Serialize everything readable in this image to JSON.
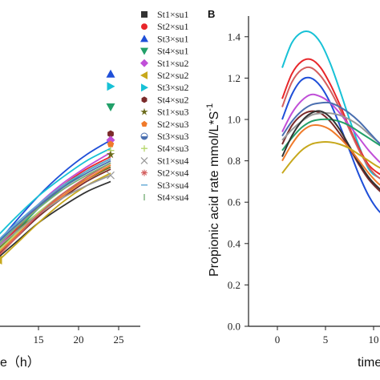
{
  "chart_data": [
    {
      "type": "line",
      "panel_label": "",
      "xlabel": "time (h)",
      "xlabel_visible": "e（h）",
      "ylabel": "",
      "x_ticks": [
        "15",
        "20",
        "25"
      ],
      "xlim": [
        9,
        27
      ],
      "ylim": [
        0,
        1.5
      ],
      "legend": {
        "placement": "right",
        "entries": [
          {
            "label": "St1×su1",
            "color": "#333333",
            "marker": "square"
          },
          {
            "label": "St2×su1",
            "color": "#e8262a",
            "marker": "circle"
          },
          {
            "label": "St3×su1",
            "color": "#1f4fd8",
            "marker": "triangle-up"
          },
          {
            "label": "St4×su1",
            "color": "#22a069",
            "marker": "triangle-down"
          },
          {
            "label": "St1×su2",
            "color": "#c04fd8",
            "marker": "diamond"
          },
          {
            "label": "St2×su2",
            "color": "#c7a81c",
            "marker": "triangle-left"
          },
          {
            "label": "St3×su2",
            "color": "#17c1d6",
            "marker": "triangle-right"
          },
          {
            "label": "St4×su2",
            "color": "#7a2a2a",
            "marker": "hexagon"
          },
          {
            "label": "St1×su3",
            "color": "#6a6a1a",
            "marker": "star"
          },
          {
            "label": "St2×su3",
            "color": "#f07a2a",
            "marker": "pentagon"
          },
          {
            "label": "St3×su3",
            "color": "#4a6fb0",
            "marker": "half-circle"
          },
          {
            "label": "St4×su3",
            "color": "#b5d66a",
            "marker": "plus"
          },
          {
            "label": "St1×su4",
            "color": "#999999",
            "marker": "x"
          },
          {
            "label": "St2×su4",
            "color": "#d45f5f",
            "marker": "asterisk"
          },
          {
            "label": "St3×su4",
            "color": "#5fa8d4",
            "marker": "dash"
          },
          {
            "label": "St4×su4",
            "color": "#7ab07a",
            "marker": "vline"
          }
        ]
      },
      "x": [
        9,
        12,
        15,
        18,
        21,
        24
      ],
      "series": [
        {
          "name": "St1×su1",
          "values": [
            0.3,
            0.4,
            0.5,
            0.58,
            0.65,
            0.7
          ]
        },
        {
          "name": "St2×su1",
          "values": [
            0.34,
            0.46,
            0.58,
            0.68,
            0.76,
            0.82
          ]
        },
        {
          "name": "St3×su1",
          "values": [
            0.36,
            0.5,
            0.63,
            0.74,
            0.83,
            0.9
          ]
        },
        {
          "name": "St4×su1",
          "values": [
            0.33,
            0.45,
            0.57,
            0.67,
            0.75,
            0.81
          ]
        },
        {
          "name": "St1×su2",
          "values": [
            0.35,
            0.47,
            0.59,
            0.69,
            0.77,
            0.84
          ]
        },
        {
          "name": "St2×su2",
          "values": [
            0.28,
            0.39,
            0.5,
            0.6,
            0.68,
            0.74
          ]
        },
        {
          "name": "St3×su2",
          "values": [
            0.4,
            0.52,
            0.63,
            0.72,
            0.8,
            0.86
          ]
        },
        {
          "name": "St4×su2",
          "values": [
            0.31,
            0.42,
            0.53,
            0.62,
            0.7,
            0.76
          ]
        },
        {
          "name": "St1×su3",
          "values": [
            0.34,
            0.45,
            0.55,
            0.64,
            0.71,
            0.77
          ]
        },
        {
          "name": "St2×su3",
          "values": [
            0.32,
            0.43,
            0.54,
            0.63,
            0.71,
            0.78
          ]
        },
        {
          "name": "St3×su3",
          "values": [
            0.37,
            0.48,
            0.58,
            0.67,
            0.74,
            0.8
          ]
        },
        {
          "name": "St4×su3",
          "values": [
            0.33,
            0.44,
            0.55,
            0.64,
            0.72,
            0.79
          ]
        },
        {
          "name": "St1×su4",
          "values": [
            0.35,
            0.45,
            0.54,
            0.62,
            0.68,
            0.73
          ]
        },
        {
          "name": "St2×su4",
          "values": [
            0.3,
            0.42,
            0.54,
            0.64,
            0.72,
            0.79
          ]
        },
        {
          "name": "St3×su4",
          "values": [
            0.38,
            0.49,
            0.59,
            0.68,
            0.75,
            0.81
          ]
        },
        {
          "name": "St4×su4",
          "values": [
            0.36,
            0.47,
            0.57,
            0.66,
            0.73,
            0.79
          ]
        }
      ],
      "end_markers": [
        {
          "series": "St3×su1",
          "x": 24,
          "y": 1.22
        },
        {
          "series": "St3×su2",
          "x": 24,
          "y": 1.16
        },
        {
          "series": "St4×su1",
          "x": 24,
          "y": 1.06
        },
        {
          "series": "St4×su2",
          "x": 24,
          "y": 0.93
        },
        {
          "series": "St1×su2",
          "x": 24,
          "y": 0.9
        },
        {
          "series": "St2×su3",
          "x": 24,
          "y": 0.88
        },
        {
          "series": "St4×su3",
          "x": 24,
          "y": 0.85
        },
        {
          "series": "St1×su3",
          "x": 24,
          "y": 0.83
        },
        {
          "series": "St1×su4",
          "x": 24,
          "y": 0.73
        },
        {
          "series": "St2×su2",
          "x": 10,
          "y": 0.32
        }
      ]
    },
    {
      "type": "line",
      "panel_label": "B",
      "xlabel": "time",
      "ylabel": "Propionic acid rate mmol/L*S⁻¹",
      "ylabel_main": "Propionic acid rate mmol/L*S",
      "ylabel_sup": "-1",
      "x_ticks": [
        "0",
        "5",
        "10"
      ],
      "y_ticks": [
        "0.0",
        "0.2",
        "0.4",
        "0.6",
        "0.8",
        "1.0",
        "1.2",
        "1.4"
      ],
      "xlim": [
        -3,
        12
      ],
      "ylim": [
        0,
        1.5
      ],
      "x": [
        0.5,
        1.5,
        2.5,
        3.5,
        4.5,
        5.5,
        6.5,
        7.5,
        8.5,
        9.5,
        10.5,
        11.5
      ],
      "series": [
        {
          "name": "St3×su2",
          "values": [
            1.25,
            1.37,
            1.42,
            1.42,
            1.37,
            1.27,
            1.14,
            1.0,
            0.87,
            0.76,
            0.72,
            0.7
          ]
        },
        {
          "name": "St2×su1",
          "values": [
            1.1,
            1.22,
            1.28,
            1.29,
            1.25,
            1.17,
            1.07,
            0.96,
            0.86,
            0.78,
            0.74,
            0.72
          ]
        },
        {
          "name": "St2×su4",
          "values": [
            1.06,
            1.18,
            1.24,
            1.25,
            1.21,
            1.14,
            1.05,
            0.95,
            0.85,
            0.77,
            0.72,
            0.7
          ]
        },
        {
          "name": "St3×su1",
          "values": [
            1.0,
            1.12,
            1.19,
            1.2,
            1.16,
            1.08,
            0.97,
            0.85,
            0.73,
            0.63,
            0.56,
            0.52
          ]
        },
        {
          "name": "St1×su2",
          "values": [
            0.94,
            1.03,
            1.09,
            1.12,
            1.11,
            1.08,
            1.03,
            0.97,
            0.91,
            0.85,
            0.8,
            0.76
          ]
        },
        {
          "name": "St4×su2",
          "values": [
            0.88,
            0.97,
            1.02,
            1.04,
            1.03,
            0.99,
            0.93,
            0.86,
            0.78,
            0.71,
            0.66,
            0.62
          ]
        },
        {
          "name": "St4×su1",
          "values": [
            0.85,
            0.91,
            0.96,
            0.99,
            1.0,
            1.0,
            0.99,
            0.97,
            0.94,
            0.91,
            0.88,
            0.85
          ]
        },
        {
          "name": "St1×su4",
          "values": [
            0.9,
            0.95,
            0.99,
            1.02,
            1.03,
            1.03,
            1.02,
            1.0,
            0.97,
            0.93,
            0.89,
            0.85
          ]
        },
        {
          "name": "St1×su1",
          "values": [
            0.82,
            0.92,
            0.99,
            1.03,
            1.04,
            1.01,
            0.95,
            0.87,
            0.79,
            0.72,
            0.67,
            0.63
          ]
        },
        {
          "name": "St2×su3",
          "values": [
            0.8,
            0.88,
            0.94,
            0.97,
            0.97,
            0.95,
            0.91,
            0.86,
            0.8,
            0.74,
            0.69,
            0.66
          ]
        },
        {
          "name": "St2×su2",
          "values": [
            0.74,
            0.8,
            0.85,
            0.88,
            0.89,
            0.89,
            0.88,
            0.86,
            0.83,
            0.8,
            0.77,
            0.75
          ]
        },
        {
          "name": "St3×su3",
          "values": [
            0.92,
            0.99,
            1.04,
            1.07,
            1.08,
            1.08,
            1.06,
            1.03,
            0.99,
            0.94,
            0.89,
            0.85
          ]
        }
      ]
    }
  ]
}
